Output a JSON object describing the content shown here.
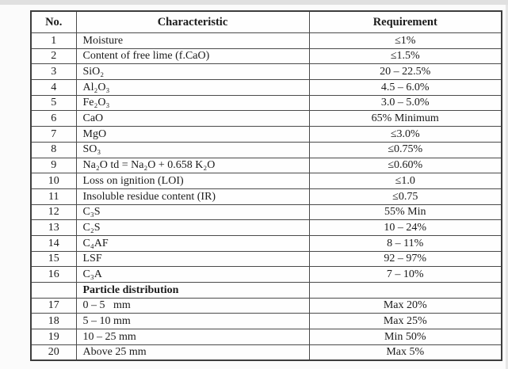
{
  "colors": {
    "border": "#4a4a4a",
    "outer_border": "#3d3d3d",
    "text": "#1b1b1b",
    "top_strip": "#e0e0e0",
    "table_background": "#fefefe"
  },
  "table": {
    "columns": [
      "No.",
      "Characteristic",
      "Requirement"
    ],
    "rows": [
      {
        "no": "1",
        "characteristic": "Moisture",
        "requirement": "≤1%"
      },
      {
        "no": "2",
        "characteristic": "Content of free lime (f.CaO)",
        "requirement": "≤1.5%"
      },
      {
        "no": "3",
        "characteristic": "SiO₂",
        "requirement": "20 – 22.5%"
      },
      {
        "no": "4",
        "characteristic": "Al₂O₃",
        "requirement": "4.5 – 6.0%"
      },
      {
        "no": "5",
        "characteristic": "Fe₂O₃",
        "requirement": "3.0 – 5.0%"
      },
      {
        "no": "6",
        "characteristic": "CaO",
        "requirement": "65% Minimum"
      },
      {
        "no": "7",
        "characteristic": "MgO",
        "requirement": "≤3.0%"
      },
      {
        "no": "8",
        "characteristic": "SO₃",
        "requirement": "≤0.75%"
      },
      {
        "no": "9",
        "characteristic": "Na₂O td = Na₂O + 0.658 K₂O",
        "requirement": "≤0.60%"
      },
      {
        "no": "10",
        "characteristic": "Loss on ignition (LOI)",
        "requirement": "≤1.0"
      },
      {
        "no": "11",
        "characteristic": "Insoluble residue content (IR)",
        "requirement": "≤0.75"
      },
      {
        "no": "12",
        "characteristic": "C₃S",
        "requirement": "55% Min"
      },
      {
        "no": "13",
        "characteristic": "C₂S",
        "requirement": "10 – 24%"
      },
      {
        "no": "14",
        "characteristic": "C₄AF",
        "requirement": "8 – 11%"
      },
      {
        "no": "15",
        "characteristic": "LSF",
        "requirement": "92 – 97%"
      },
      {
        "no": "16",
        "characteristic": "C₃A",
        "requirement": "7 – 10%"
      },
      {
        "no": "",
        "characteristic": "Particle distribution",
        "requirement": "",
        "bold": true
      },
      {
        "no": "17",
        "characteristic": "0 – 5   mm",
        "requirement": "Max 20%"
      },
      {
        "no": "18",
        "characteristic": "5 – 10 mm",
        "requirement": "Max 25%"
      },
      {
        "no": "19",
        "characteristic": "10 – 25 mm",
        "requirement": "Min 50%"
      },
      {
        "no": "20",
        "characteristic": "Above 25 mm",
        "requirement": "Max 5%"
      }
    ]
  }
}
